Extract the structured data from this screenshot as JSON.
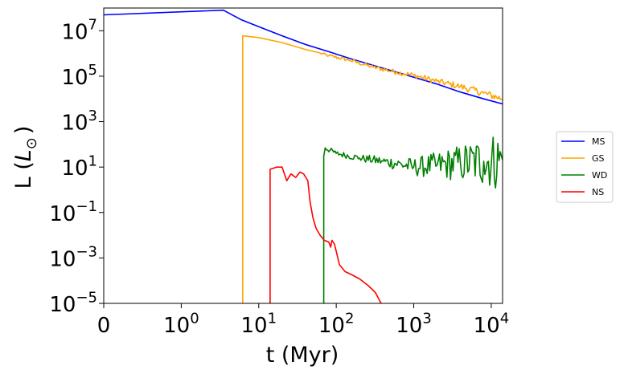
{
  "chart_data": {
    "type": "line",
    "xlabel": "t (Myr)",
    "ylabel": "L (",
    "ylabel_symbol": "L",
    "ylabel_sub": "⊙",
    "ylabel_close": ")",
    "x_scale": "symlog",
    "y_scale": "log",
    "xlim": [
      0,
      14000
    ],
    "ylim": [
      1e-05,
      100000000.0
    ],
    "grid": false,
    "legend_position": "right",
    "x_ticks": [
      {
        "value": 0,
        "label": "0"
      },
      {
        "value": 1,
        "base": "10",
        "exp": "0"
      },
      {
        "value": 10,
        "base": "10",
        "exp": "1"
      },
      {
        "value": 100,
        "base": "10",
        "exp": "2"
      },
      {
        "value": 1000,
        "base": "10",
        "exp": "3"
      },
      {
        "value": 10000,
        "base": "10",
        "exp": "4"
      }
    ],
    "y_ticks": [
      {
        "value": 1e-05,
        "base": "10",
        "exp": "−5"
      },
      {
        "value": 0.001,
        "base": "10",
        "exp": "−3"
      },
      {
        "value": 0.1,
        "base": "10",
        "exp": "−1"
      },
      {
        "value": 10,
        "base": "10",
        "exp": "1"
      },
      {
        "value": 1000,
        "base": "10",
        "exp": "3"
      },
      {
        "value": 100000,
        "base": "10",
        "exp": "5"
      },
      {
        "value": 10000000,
        "base": "10",
        "exp": "7"
      }
    ],
    "series": [
      {
        "name": "MS",
        "color": "#0000ff",
        "noisy_from_x": 100000,
        "points": [
          [
            0,
            50000000.0
          ],
          [
            3.5,
            80000000.0
          ],
          [
            6,
            30000000.0
          ],
          [
            10,
            15000000.0
          ],
          [
            20,
            6000000.0
          ],
          [
            40,
            2500000.0
          ],
          [
            80,
            1200000.0
          ],
          [
            150,
            600000.0
          ],
          [
            300,
            300000.0
          ],
          [
            600,
            150000.0
          ],
          [
            1000,
            90000.0
          ],
          [
            2000,
            45000.0
          ],
          [
            4000,
            20000.0
          ],
          [
            8000,
            10000.0
          ],
          [
            14000,
            6000.0
          ]
        ]
      },
      {
        "name": "GS",
        "color": "#ffa500",
        "noisy_from_x": 60,
        "points": [
          [
            6.2,
            1e-05
          ],
          [
            6.2,
            6000000.0
          ],
          [
            10,
            5000000.0
          ],
          [
            20,
            3000000.0
          ],
          [
            40,
            1500000.0
          ],
          [
            80,
            800000.0
          ],
          [
            150,
            500000.0
          ],
          [
            300,
            250000.0
          ],
          [
            600,
            150000.0
          ],
          [
            1000,
            110000.0
          ],
          [
            2000,
            60000.0
          ],
          [
            4000,
            35000.0
          ],
          [
            8000,
            18000.0
          ],
          [
            14000,
            10000.0
          ]
        ]
      },
      {
        "name": "WD",
        "color": "#008000",
        "noisy_from_x": 72,
        "points": [
          [
            69,
            1e-05
          ],
          [
            69,
            30.0
          ],
          [
            72,
            70.0
          ],
          [
            100,
            40.0
          ],
          [
            200,
            25.0
          ],
          [
            400,
            18.0
          ],
          [
            700,
            13.0
          ],
          [
            1000,
            10.0
          ],
          [
            2000,
            12.0
          ],
          [
            4000,
            15.0
          ],
          [
            8000,
            18.0
          ],
          [
            14000,
            20.0
          ]
        ]
      },
      {
        "name": "NS",
        "color": "#ff0000",
        "noisy_from_x": 100000,
        "points": [
          [
            14,
            1e-05
          ],
          [
            14,
            8.0
          ],
          [
            17,
            10.0
          ],
          [
            20,
            10.0
          ],
          [
            23,
            2.5
          ],
          [
            26,
            5.0
          ],
          [
            30,
            3.5
          ],
          [
            34,
            6.0
          ],
          [
            38,
            5.0
          ],
          [
            43,
            2.5
          ],
          [
            46,
            0.3
          ],
          [
            50,
            0.06
          ],
          [
            55,
            0.02
          ],
          [
            62,
            0.01
          ],
          [
            70,
            0.006
          ],
          [
            80,
            0.005
          ],
          [
            85,
            0.003
          ],
          [
            88,
            0.006
          ],
          [
            95,
            0.004
          ],
          [
            100,
            0.002
          ],
          [
            110,
            0.0005
          ],
          [
            130,
            0.00025
          ],
          [
            160,
            0.00018
          ],
          [
            200,
            0.00012
          ],
          [
            260,
            6e-05
          ],
          [
            320,
            3e-05
          ],
          [
            380,
            1e-05
          ]
        ]
      }
    ]
  }
}
